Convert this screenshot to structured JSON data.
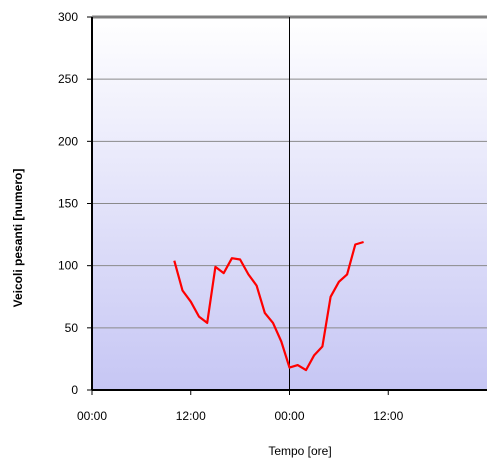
{
  "chart_data": {
    "type": "line",
    "title": "",
    "xlabel": "Tempo [ore]",
    "ylabel": "Veicoli pesanti [numero]",
    "ylim": [
      0,
      300
    ],
    "xlim": [
      0,
      48
    ],
    "yticks": [
      0,
      50,
      100,
      150,
      200,
      250,
      300
    ],
    "xticks": [
      {
        "value": 0,
        "label": "00:00"
      },
      {
        "value": 12,
        "label": "12:00"
      },
      {
        "value": 24,
        "label": "00:00"
      },
      {
        "value": 36,
        "label": "12:00"
      }
    ],
    "midnight_marker": 24,
    "grid": true,
    "background_gradient": [
      "#ffffff",
      "#c6c6f4"
    ],
    "series": [
      {
        "color": "#ff0000",
        "x": [
          10,
          11,
          12,
          13,
          14,
          15,
          16,
          17,
          18,
          19,
          20,
          21,
          22,
          23,
          24,
          25,
          26,
          27,
          28,
          29,
          30,
          31,
          32,
          33,
          34
        ],
        "y": [
          104,
          80,
          71,
          59,
          54,
          99,
          94,
          106,
          105,
          93,
          84,
          62,
          54,
          39,
          18,
          20,
          16,
          28,
          35,
          75,
          87,
          93,
          117,
          119,
          null
        ]
      }
    ]
  }
}
